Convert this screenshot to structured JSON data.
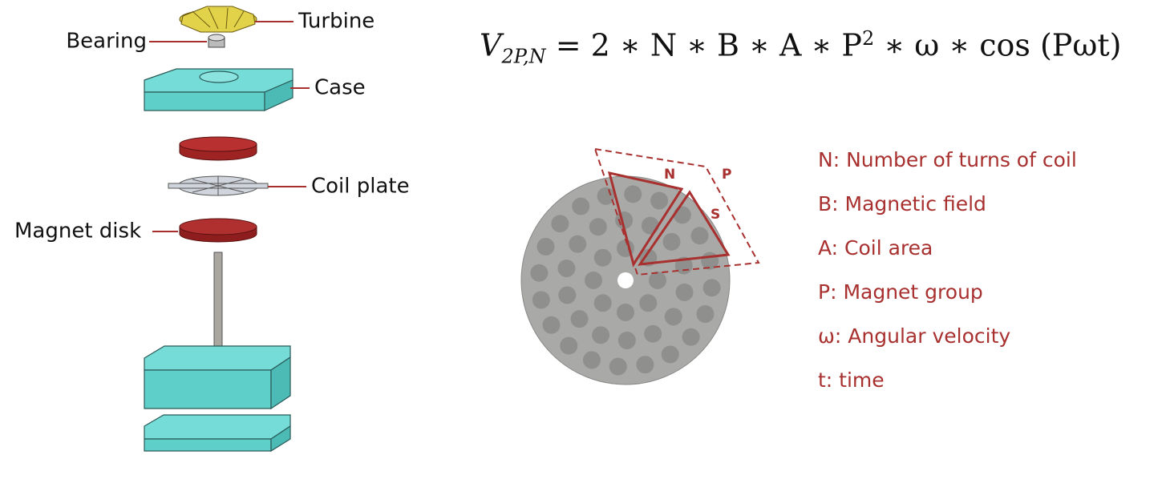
{
  "parts": [
    {
      "label": "Turbine"
    },
    {
      "label": "Bearing"
    },
    {
      "label": "Case"
    },
    {
      "label": "Coil plate"
    },
    {
      "label": "Magnet disk"
    }
  ],
  "equation": {
    "lhs": "V",
    "lhs_sub": "2P,N",
    "rhs": "= 2 ∗ N ∗ B ∗ A ∗ P",
    "sup": "2",
    "rest": "∗ ω ∗ cos (Pωt)"
  },
  "disk_labels": {
    "n": "N",
    "p": "P",
    "s": "S"
  },
  "legend": [
    "N: Number of turns of coil",
    "B: Magnetic field",
    "A: Coil area",
    "P: Magnet group",
    "ω: Angular velocity",
    "t: time"
  ]
}
